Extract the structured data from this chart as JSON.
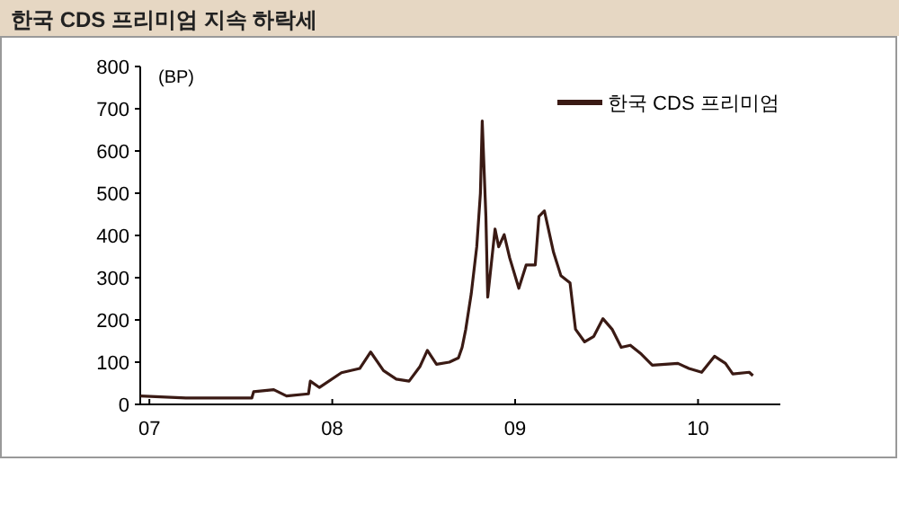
{
  "chart_data": {
    "type": "line",
    "title": "한국 CDS 프리미엄 지속 하락세",
    "ylabel": "(BP)",
    "series": [
      {
        "name": "한국 CDS 프리미엄",
        "color": "#3a1a14",
        "x": [
          2006.95,
          2007.2,
          2007.4,
          2007.56,
          2007.57,
          2007.68,
          2007.75,
          2007.87,
          2007.88,
          2007.93,
          2008.05,
          2008.15,
          2008.21,
          2008.28,
          2008.35,
          2008.42,
          2008.48,
          2008.52,
          2008.57,
          2008.64,
          2008.69,
          2008.71,
          2008.73,
          2008.76,
          2008.79,
          2008.81,
          2008.82,
          2008.84,
          2008.85,
          2008.89,
          2008.91,
          2008.94,
          2008.97,
          2009.02,
          2009.06,
          2009.11,
          2009.13,
          2009.16,
          2009.21,
          2009.25,
          2009.3,
          2009.33,
          2009.38,
          2009.43,
          2009.48,
          2009.53,
          2009.58,
          2009.63,
          2009.69,
          2009.75,
          2009.89,
          2009.95,
          2010.02,
          2010.09,
          2010.15,
          2010.19,
          2010.28,
          2010.3
        ],
        "values": [
          20,
          15,
          15,
          15,
          30,
          35,
          20,
          25,
          55,
          40,
          75,
          85,
          124,
          80,
          60,
          55,
          90,
          128,
          95,
          100,
          110,
          135,
          178,
          262,
          373,
          500,
          671,
          445,
          254,
          415,
          373,
          402,
          347,
          275,
          330,
          330,
          445,
          458,
          360,
          305,
          288,
          178,
          148,
          161,
          203,
          178,
          135,
          140,
          119,
          93,
          97,
          85,
          76,
          114,
          97,
          72,
          76,
          68
        ]
      }
    ],
    "xlim": [
      2006.95,
      2010.45
    ],
    "xticks": [
      {
        "value": 2007,
        "label": "07"
      },
      {
        "value": 2008,
        "label": "08"
      },
      {
        "value": 2009,
        "label": "09"
      },
      {
        "value": 2010,
        "label": "10"
      }
    ],
    "ylim": [
      0,
      800
    ],
    "yticks": [
      0,
      100,
      200,
      300,
      400,
      500,
      600,
      700,
      800
    ],
    "grid": false,
    "legend": "top right"
  }
}
